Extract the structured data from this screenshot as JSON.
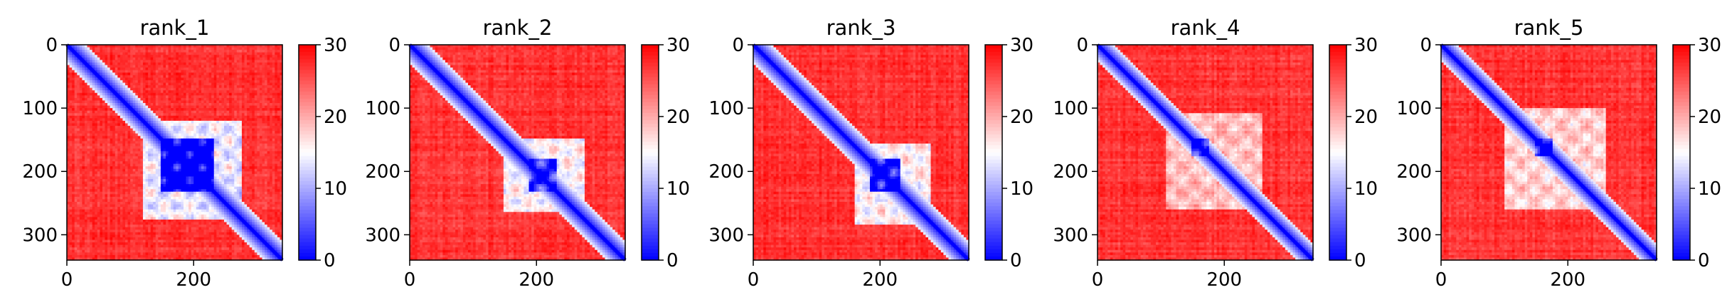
{
  "chart_data": [
    {
      "type": "heatmap",
      "title": "rank_1",
      "n": 340,
      "xlim": [
        0,
        340
      ],
      "ylim": [
        340,
        0
      ],
      "x_ticks": [
        0,
        200
      ],
      "y_ticks": [
        0,
        100,
        200,
        300
      ],
      "colorbar": {
        "min": 0,
        "max": 30,
        "ticks": [
          0,
          10,
          20,
          30
        ],
        "colormap": [
          "#0000ff",
          "#ffffff",
          "#ff0000"
        ]
      },
      "low_blocks": [
        {
          "x": [
            120,
            275
          ],
          "y": [
            120,
            275
          ],
          "level": 0.55
        },
        {
          "x": [
            150,
            230
          ],
          "y": [
            150,
            230
          ],
          "level": 0.75
        }
      ],
      "diagonal_width": 8
    },
    {
      "type": "heatmap",
      "title": "rank_2",
      "n": 340,
      "xlim": [
        0,
        340
      ],
      "ylim": [
        340,
        0
      ],
      "x_ticks": [
        0,
        200
      ],
      "y_ticks": [
        0,
        100,
        200,
        300
      ],
      "colorbar": {
        "min": 0,
        "max": 30,
        "ticks": [
          0,
          10,
          20,
          30
        ],
        "colormap": [
          "#0000ff",
          "#ffffff",
          "#ff0000"
        ]
      },
      "low_blocks": [
        {
          "x": [
            150,
            275
          ],
          "y": [
            150,
            265
          ],
          "level": 0.5
        },
        {
          "x": [
            190,
            230
          ],
          "y": [
            180,
            230
          ],
          "level": 0.6
        }
      ],
      "diagonal_width": 8
    },
    {
      "type": "heatmap",
      "title": "rank_3",
      "n": 340,
      "xlim": [
        0,
        340
      ],
      "ylim": [
        340,
        0
      ],
      "x_ticks": [
        0,
        200
      ],
      "y_ticks": [
        0,
        100,
        200,
        300
      ],
      "colorbar": {
        "min": 0,
        "max": 30,
        "ticks": [
          0,
          10,
          20,
          30
        ],
        "colormap": [
          "#0000ff",
          "#ffffff",
          "#ff0000"
        ]
      },
      "low_blocks": [
        {
          "x": [
            160,
            280
          ],
          "y": [
            155,
            285
          ],
          "level": 0.5
        },
        {
          "x": [
            185,
            230
          ],
          "y": [
            180,
            230
          ],
          "level": 0.7
        }
      ],
      "diagonal_width": 8
    },
    {
      "type": "heatmap",
      "title": "rank_4",
      "n": 340,
      "xlim": [
        0,
        340
      ],
      "ylim": [
        340,
        0
      ],
      "x_ticks": [
        0,
        200
      ],
      "y_ticks": [
        0,
        100,
        200,
        300
      ],
      "colorbar": {
        "min": 0,
        "max": 30,
        "ticks": [
          0,
          10,
          20,
          30
        ],
        "colormap": [
          "#0000ff",
          "#ffffff",
          "#ff0000"
        ]
      },
      "low_blocks": [
        {
          "x": [
            110,
            260
          ],
          "y": [
            110,
            260
          ],
          "level": 0.35
        },
        {
          "x": [
            150,
            175
          ],
          "y": [
            150,
            175
          ],
          "level": 0.8
        }
      ],
      "diagonal_width": 7
    },
    {
      "type": "heatmap",
      "title": "rank_5",
      "n": 340,
      "xlim": [
        0,
        340
      ],
      "ylim": [
        340,
        0
      ],
      "x_ticks": [
        0,
        200
      ],
      "y_ticks": [
        0,
        100,
        200,
        300
      ],
      "colorbar": {
        "min": 0,
        "max": 30,
        "ticks": [
          0,
          10,
          20,
          30
        ],
        "colormap": [
          "#0000ff",
          "#ffffff",
          "#ff0000"
        ]
      },
      "low_blocks": [
        {
          "x": [
            100,
            260
          ],
          "y": [
            100,
            260
          ],
          "level": 0.4
        },
        {
          "x": [
            150,
            175
          ],
          "y": [
            150,
            175
          ],
          "level": 0.8
        }
      ],
      "diagonal_width": 7
    }
  ]
}
